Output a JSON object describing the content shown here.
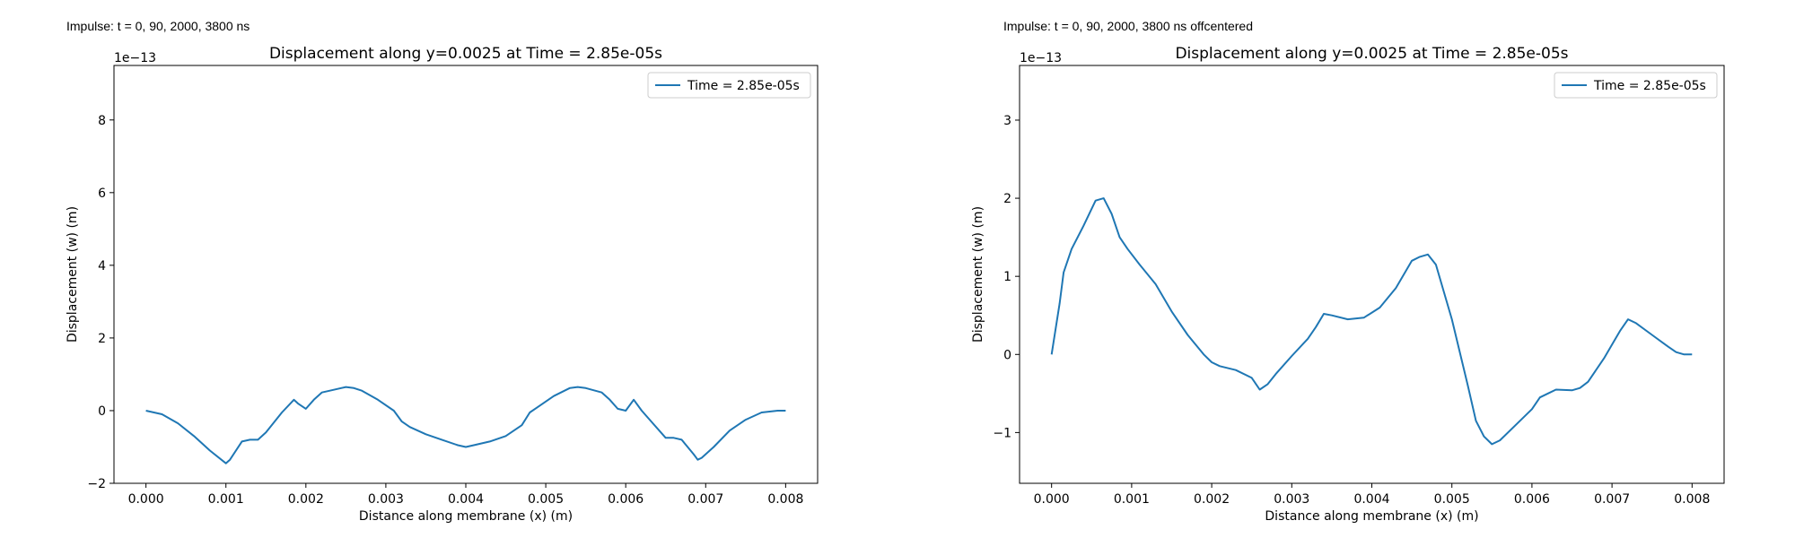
{
  "captions": {
    "left": "Impulse: t = 0, 90, 2000, 3800 ns",
    "right": "Impulse: t = 0, 90, 2000, 3800 ns offcentered"
  },
  "chart_data": [
    {
      "type": "line",
      "title": "Displacement along y=0.0025 at Time = 2.85e-05s",
      "xlabel": "Distance along membrane (x) (m)",
      "ylabel": "Displacement (w) (m)",
      "offset_text": "1e−13",
      "xlim": [
        -0.0004,
        0.0084
      ],
      "ylim": [
        -2.0,
        9.5
      ],
      "xticks": [
        0.0,
        0.001,
        0.002,
        0.003,
        0.004,
        0.005,
        0.006,
        0.007,
        0.008
      ],
      "xtick_labels": [
        "0.000",
        "0.001",
        "0.002",
        "0.003",
        "0.004",
        "0.005",
        "0.006",
        "0.007",
        "0.008"
      ],
      "yticks": [
        -2,
        0,
        2,
        4,
        6,
        8
      ],
      "ytick_labels": [
        "−2",
        "0",
        "2",
        "4",
        "6",
        "8"
      ],
      "legend": "upper right",
      "grid": false,
      "series": [
        {
          "name": "Time = 2.85e-05s",
          "color": "#1f77b4",
          "x": [
            0.0,
            0.0002,
            0.0004,
            0.0006,
            0.0008,
            0.001,
            0.00105,
            0.0012,
            0.0013,
            0.0014,
            0.0015,
            0.0017,
            0.00185,
            0.0019,
            0.002,
            0.0021,
            0.0022,
            0.0023,
            0.0025,
            0.0026,
            0.0027,
            0.0029,
            0.0031,
            0.0032,
            0.0033,
            0.0035,
            0.0037,
            0.0039,
            0.004,
            0.0041,
            0.0043,
            0.0045,
            0.0047,
            0.0048,
            0.0049,
            0.0051,
            0.0053,
            0.0054,
            0.0055,
            0.0057,
            0.0058,
            0.0059,
            0.006,
            0.0061,
            0.0062,
            0.0063,
            0.0065,
            0.0066,
            0.0067,
            0.00685,
            0.0069,
            0.00695,
            0.0071,
            0.0073,
            0.0075,
            0.0077,
            0.0079,
            0.008
          ],
          "y": [
            0.0,
            -0.1,
            -0.35,
            -0.7,
            -1.1,
            -1.45,
            -1.35,
            -0.85,
            -0.8,
            -0.8,
            -0.6,
            -0.05,
            0.3,
            0.2,
            0.05,
            0.3,
            0.5,
            0.55,
            0.65,
            0.62,
            0.55,
            0.3,
            0.0,
            -0.3,
            -0.45,
            -0.65,
            -0.8,
            -0.95,
            -1.0,
            -0.95,
            -0.85,
            -0.7,
            -0.4,
            -0.05,
            0.1,
            0.4,
            0.62,
            0.65,
            0.62,
            0.5,
            0.3,
            0.05,
            0.0,
            0.3,
            0.0,
            -0.25,
            -0.75,
            -0.75,
            -0.8,
            -1.2,
            -1.35,
            -1.3,
            -1.0,
            -0.55,
            -0.25,
            -0.05,
            0.0,
            0.0
          ]
        }
      ]
    },
    {
      "type": "line",
      "title": "Displacement along y=0.0025 at Time = 2.85e-05s",
      "xlabel": "Distance along membrane (x) (m)",
      "ylabel": "Displacement (w) (m)",
      "offset_text": "1e−13",
      "xlim": [
        -0.0004,
        0.0084
      ],
      "ylim": [
        -1.65,
        3.7
      ],
      "xticks": [
        0.0,
        0.001,
        0.002,
        0.003,
        0.004,
        0.005,
        0.006,
        0.007,
        0.008
      ],
      "xtick_labels": [
        "0.000",
        "0.001",
        "0.002",
        "0.003",
        "0.004",
        "0.005",
        "0.006",
        "0.007",
        "0.008"
      ],
      "yticks": [
        -1,
        0,
        1,
        2,
        3
      ],
      "ytick_labels": [
        "−1",
        "0",
        "1",
        "2",
        "3"
      ],
      "legend": "upper right",
      "grid": false,
      "series": [
        {
          "name": "Time = 2.85e-05s",
          "color": "#1f77b4",
          "x": [
            0.0,
            0.0001,
            0.00015,
            0.00025,
            0.0004,
            0.00055,
            0.00065,
            0.00075,
            0.00085,
            0.00095,
            0.0011,
            0.0013,
            0.0015,
            0.0017,
            0.0019,
            0.002,
            0.0021,
            0.0023,
            0.0025,
            0.0026,
            0.0027,
            0.0028,
            0.003,
            0.0032,
            0.0033,
            0.0034,
            0.0035,
            0.0037,
            0.0039,
            0.0041,
            0.0043,
            0.0045,
            0.0046,
            0.0047,
            0.0048,
            0.005,
            0.0052,
            0.0053,
            0.0054,
            0.0055,
            0.0056,
            0.0058,
            0.006,
            0.0061,
            0.0062,
            0.0063,
            0.0065,
            0.0066,
            0.0067,
            0.0069,
            0.0071,
            0.0072,
            0.0073,
            0.0075,
            0.0077,
            0.0078,
            0.0079,
            0.008
          ],
          "y": [
            0.0,
            0.65,
            1.05,
            1.35,
            1.65,
            1.97,
            2.0,
            1.8,
            1.5,
            1.35,
            1.15,
            0.9,
            0.55,
            0.25,
            0.0,
            -0.1,
            -0.15,
            -0.2,
            -0.3,
            -0.45,
            -0.38,
            -0.25,
            -0.02,
            0.2,
            0.35,
            0.52,
            0.5,
            0.45,
            0.47,
            0.6,
            0.85,
            1.2,
            1.25,
            1.28,
            1.15,
            0.45,
            -0.4,
            -0.85,
            -1.05,
            -1.15,
            -1.1,
            -0.9,
            -0.7,
            -0.55,
            -0.5,
            -0.45,
            -0.46,
            -0.43,
            -0.35,
            -0.05,
            0.3,
            0.45,
            0.4,
            0.25,
            0.1,
            0.03,
            0.0,
            0.0
          ]
        }
      ]
    }
  ]
}
